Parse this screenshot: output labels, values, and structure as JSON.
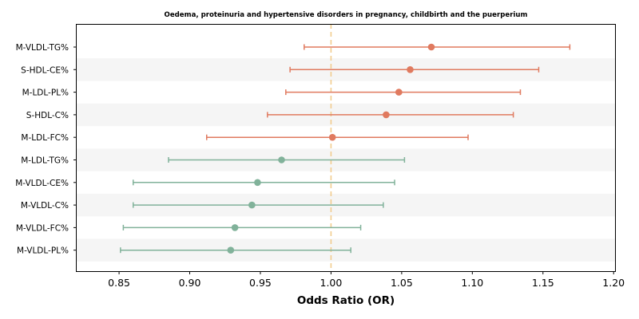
{
  "chart_data": {
    "type": "forest",
    "title": "Oedema, proteinuria and hypertensive disorders in pregnancy, childbirth and the puerperium",
    "xlabel": "Odds Ratio (OR)",
    "ylabel": "",
    "xlim": [
      0.82,
      1.201
    ],
    "x_ticks": [
      "0.85",
      "0.90",
      "0.95",
      "1.00",
      "1.05",
      "1.10",
      "1.15",
      "1.20"
    ],
    "reference_line": 1.0,
    "grid": false,
    "colors": {
      "increased": "#e07a5f",
      "decreased": "#81b29a",
      "reference": "#f2cc8f",
      "band": "#f5f5f5"
    },
    "rows": [
      {
        "label": "M-VLDL-TG%",
        "or": 1.071,
        "lower": 0.981,
        "upper": 1.169
      },
      {
        "label": "S-HDL-CE%",
        "or": 1.056,
        "lower": 0.971,
        "upper": 1.147
      },
      {
        "label": "M-LDL-PL%",
        "or": 1.048,
        "lower": 0.968,
        "upper": 1.134
      },
      {
        "label": "S-HDL-C%",
        "or": 1.039,
        "lower": 0.955,
        "upper": 1.129
      },
      {
        "label": "M-LDL-FC%",
        "or": 1.001,
        "lower": 0.912,
        "upper": 1.097
      },
      {
        "label": "M-LDL-TG%",
        "or": 0.965,
        "lower": 0.885,
        "upper": 1.052
      },
      {
        "label": "M-VLDL-CE%",
        "or": 0.948,
        "lower": 0.86,
        "upper": 1.045
      },
      {
        "label": "M-VLDL-C%",
        "or": 0.944,
        "lower": 0.86,
        "upper": 1.037
      },
      {
        "label": "M-VLDL-FC%",
        "or": 0.932,
        "lower": 0.853,
        "upper": 1.021
      },
      {
        "label": "M-VLDL-PL%",
        "or": 0.929,
        "lower": 0.851,
        "upper": 1.014
      }
    ]
  }
}
